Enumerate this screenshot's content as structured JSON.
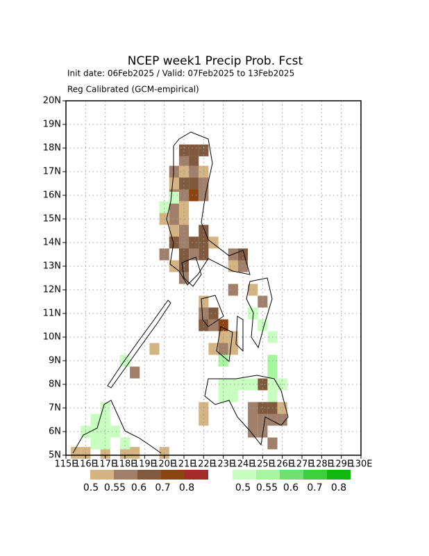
{
  "header": {
    "title": "NCEP week1 Precip Prob. Fcst",
    "subtitle": "Init date: 06Feb2025 / Valid: 07Feb2025 to 13Feb2025",
    "note": "Reg Calibrated (GCM-empirical)"
  },
  "map": {
    "lonlim": [
      115,
      130
    ],
    "latlim": [
      5,
      20
    ],
    "cell_size": 0.5,
    "grid": true,
    "xticks": [
      {
        "value": 115,
        "label": "115E"
      },
      {
        "value": 116,
        "label": "116E"
      },
      {
        "value": 117,
        "label": "117E"
      },
      {
        "value": 118,
        "label": "118E"
      },
      {
        "value": 119,
        "label": "119E"
      },
      {
        "value": 120,
        "label": "120E"
      },
      {
        "value": 121,
        "label": "121E"
      },
      {
        "value": 122,
        "label": "122E"
      },
      {
        "value": 123,
        "label": "123E"
      },
      {
        "value": 124,
        "label": "124E"
      },
      {
        "value": 125,
        "label": "125E"
      },
      {
        "value": 126,
        "label": "126E"
      },
      {
        "value": 127,
        "label": "127E"
      },
      {
        "value": 128,
        "label": "128E"
      },
      {
        "value": 129,
        "label": "129E"
      },
      {
        "value": 130,
        "label": "130E"
      }
    ],
    "yticks": [
      {
        "value": 5,
        "label": "5N"
      },
      {
        "value": 6,
        "label": "6N"
      },
      {
        "value": 7,
        "label": "7N"
      },
      {
        "value": 8,
        "label": "8N"
      },
      {
        "value": 9,
        "label": "9N"
      },
      {
        "value": 10,
        "label": "10N"
      },
      {
        "value": 11,
        "label": "11N"
      },
      {
        "value": 12,
        "label": "12N"
      },
      {
        "value": 13,
        "label": "13N"
      },
      {
        "value": 14,
        "label": "14N"
      },
      {
        "value": 15,
        "label": "15N"
      },
      {
        "value": 16,
        "label": "16N"
      },
      {
        "value": 17,
        "label": "17N"
      },
      {
        "value": 18,
        "label": "18N"
      },
      {
        "value": 19,
        "label": "19N"
      },
      {
        "value": 20,
        "label": "20N"
      }
    ],
    "dry_cells": [
      [
        121,
        17.9,
        2
      ],
      [
        121.5,
        17.9,
        2
      ],
      [
        122,
        17.9,
        2
      ],
      [
        121,
        17.4,
        1
      ],
      [
        121.5,
        17.4,
        2
      ],
      [
        120.5,
        17,
        1
      ],
      [
        121,
        17,
        0
      ],
      [
        121.5,
        17,
        1
      ],
      [
        122,
        17,
        0
      ],
      [
        120.5,
        16.5,
        0
      ],
      [
        121,
        16.5,
        2
      ],
      [
        121.5,
        16.5,
        2
      ],
      [
        122,
        16.5,
        1
      ],
      [
        120.5,
        16,
        1
      ],
      [
        121,
        16,
        1
      ],
      [
        121.5,
        16,
        3
      ],
      [
        122,
        16,
        1
      ],
      [
        120.5,
        15.5,
        1
      ],
      [
        121,
        15.5,
        0
      ],
      [
        120,
        15,
        0
      ],
      [
        120.5,
        15,
        1
      ],
      [
        121,
        15,
        0
      ],
      [
        120.5,
        14.5,
        0
      ],
      [
        121,
        14.5,
        1
      ],
      [
        122,
        14.5,
        2
      ],
      [
        120.5,
        14,
        2
      ],
      [
        121,
        14,
        1
      ],
      [
        121.5,
        14,
        2
      ],
      [
        122,
        14,
        2
      ],
      [
        122.5,
        14,
        0
      ],
      [
        120,
        13.5,
        1
      ],
      [
        121,
        13.5,
        2
      ],
      [
        121.5,
        13.5,
        1
      ],
      [
        122,
        13.5,
        2
      ],
      [
        120.5,
        13,
        0
      ],
      [
        121,
        13,
        2
      ],
      [
        121,
        12.5,
        1
      ],
      [
        123.5,
        13.5,
        1
      ],
      [
        124,
        13.5,
        2
      ],
      [
        123.5,
        13,
        0
      ],
      [
        124,
        13,
        1
      ],
      [
        123.5,
        12,
        1
      ],
      [
        124.5,
        12,
        0
      ],
      [
        122,
        11.5,
        0
      ],
      [
        122,
        11,
        1
      ],
      [
        122.5,
        11,
        2
      ],
      [
        122,
        10.5,
        2
      ],
      [
        122.5,
        10.5,
        1
      ],
      [
        123,
        10.5,
        3
      ],
      [
        123,
        10,
        0
      ],
      [
        123.5,
        10,
        0
      ],
      [
        122.5,
        9.5,
        0
      ],
      [
        123,
        9.5,
        1
      ],
      [
        123.5,
        9.5,
        0
      ],
      [
        125,
        11.5,
        1
      ],
      [
        124.5,
        11,
        1
      ],
      [
        124.5,
        7,
        1
      ],
      [
        125,
        7,
        2
      ],
      [
        125.5,
        7,
        2
      ],
      [
        124.5,
        6.5,
        1
      ],
      [
        125,
        6.5,
        1
      ],
      [
        125.5,
        6.5,
        1
      ],
      [
        124.5,
        6,
        1
      ],
      [
        125,
        6,
        1
      ],
      [
        125.5,
        5.5,
        1
      ],
      [
        125,
        8,
        2
      ],
      [
        126,
        7,
        0
      ],
      [
        126,
        6.5,
        1
      ],
      [
        122,
        7,
        0
      ],
      [
        122,
        6.5,
        0
      ],
      [
        119.5,
        9.5,
        0
      ],
      [
        118.5,
        8.5,
        1
      ],
      [
        115.5,
        5.1,
        0
      ],
      [
        116,
        5.1,
        0
      ],
      [
        117,
        5.1,
        0
      ],
      [
        118,
        5.1,
        0
      ],
      [
        118.5,
        5.1,
        0
      ],
      [
        120,
        5.1,
        0
      ]
    ],
    "wet_cells": [
      [
        120.5,
        15.9,
        0
      ],
      [
        120,
        15.5,
        0
      ],
      [
        118,
        9,
        0
      ],
      [
        123,
        9,
        1
      ],
      [
        124,
        8,
        0
      ],
      [
        125.5,
        9,
        1
      ],
      [
        125.5,
        8.5,
        1
      ],
      [
        126,
        8,
        0
      ],
      [
        125.5,
        8,
        0
      ],
      [
        123,
        7.5,
        0
      ],
      [
        123.5,
        7.5,
        0
      ],
      [
        123,
        8,
        0
      ],
      [
        123.5,
        8,
        0
      ],
      [
        124.5,
        8,
        0
      ],
      [
        125.5,
        7.5,
        0
      ],
      [
        124.5,
        11,
        0
      ],
      [
        125,
        10.5,
        0
      ],
      [
        125.5,
        10,
        0
      ],
      [
        116.5,
        6.5,
        0
      ],
      [
        117,
        6.5,
        0
      ],
      [
        117,
        7,
        0
      ],
      [
        116,
        6,
        0
      ],
      [
        116.5,
        6,
        0
      ],
      [
        117,
        6,
        0
      ],
      [
        117.5,
        6,
        0
      ],
      [
        118,
        5.5,
        0
      ],
      [
        116.5,
        5.5,
        0
      ],
      [
        117,
        5.5,
        0
      ]
    ]
  },
  "legend": {
    "dry_colors": [
      "#d4b483",
      "#a0806a",
      "#7f5a3e",
      "#8b4513",
      "#a52a2a"
    ],
    "wet_colors": [
      "#c8ffc0",
      "#a8f5a0",
      "#70e070",
      "#3cd03c",
      "#10b810"
    ],
    "dry_labels": [
      0.5,
      0.55,
      0.6,
      0.7,
      0.8
    ],
    "wet_labels": [
      0.5,
      0.55,
      0.6,
      0.7,
      0.8
    ]
  }
}
